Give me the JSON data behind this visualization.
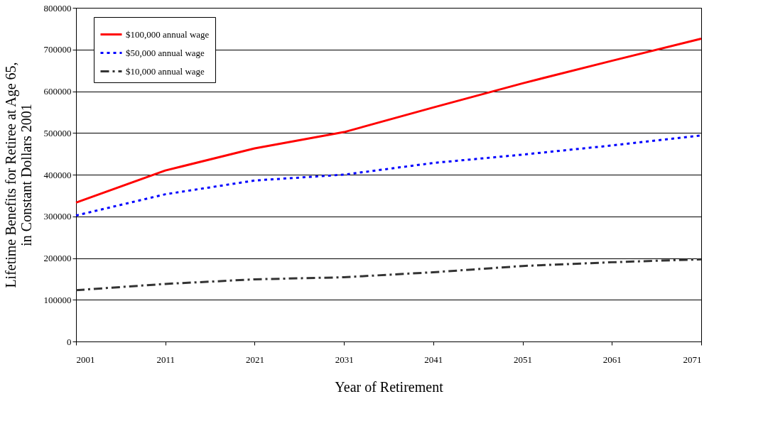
{
  "chart_data": {
    "type": "line",
    "xlabel": "Year of Retirement",
    "ylabel": "Lifetime Benefits for Retiree at Age 65, in Constant Dollars 2001",
    "x": [
      2001,
      2011,
      2021,
      2031,
      2041,
      2051,
      2061,
      2071
    ],
    "series": [
      {
        "name": "$100,000 annual wage",
        "color": "#ff0000",
        "line_style": "solid",
        "values": [
          333000,
          410000,
          463000,
          502000,
          561000,
          619000,
          673000,
          726000
        ]
      },
      {
        "name": "$50,000 annual wage",
        "color": "#0000ff",
        "line_style": "dotted",
        "values": [
          302000,
          353000,
          386000,
          400000,
          428000,
          448000,
          470000,
          494000
        ]
      },
      {
        "name": "$10,000 annual wage",
        "color": "#333333",
        "line_style": "dashdot",
        "values": [
          123000,
          138000,
          149000,
          154000,
          166000,
          181000,
          190000,
          197000
        ]
      }
    ],
    "xlim": [
      2001,
      2071
    ],
    "xticks": [
      2001,
      2011,
      2021,
      2031,
      2041,
      2051,
      2061,
      2071
    ],
    "ylim": [
      0,
      800000
    ],
    "yticks": [
      0,
      100000,
      200000,
      300000,
      400000,
      500000,
      600000,
      700000,
      800000
    ],
    "grid": "y",
    "legend": "top left",
    "marker": "none"
  }
}
